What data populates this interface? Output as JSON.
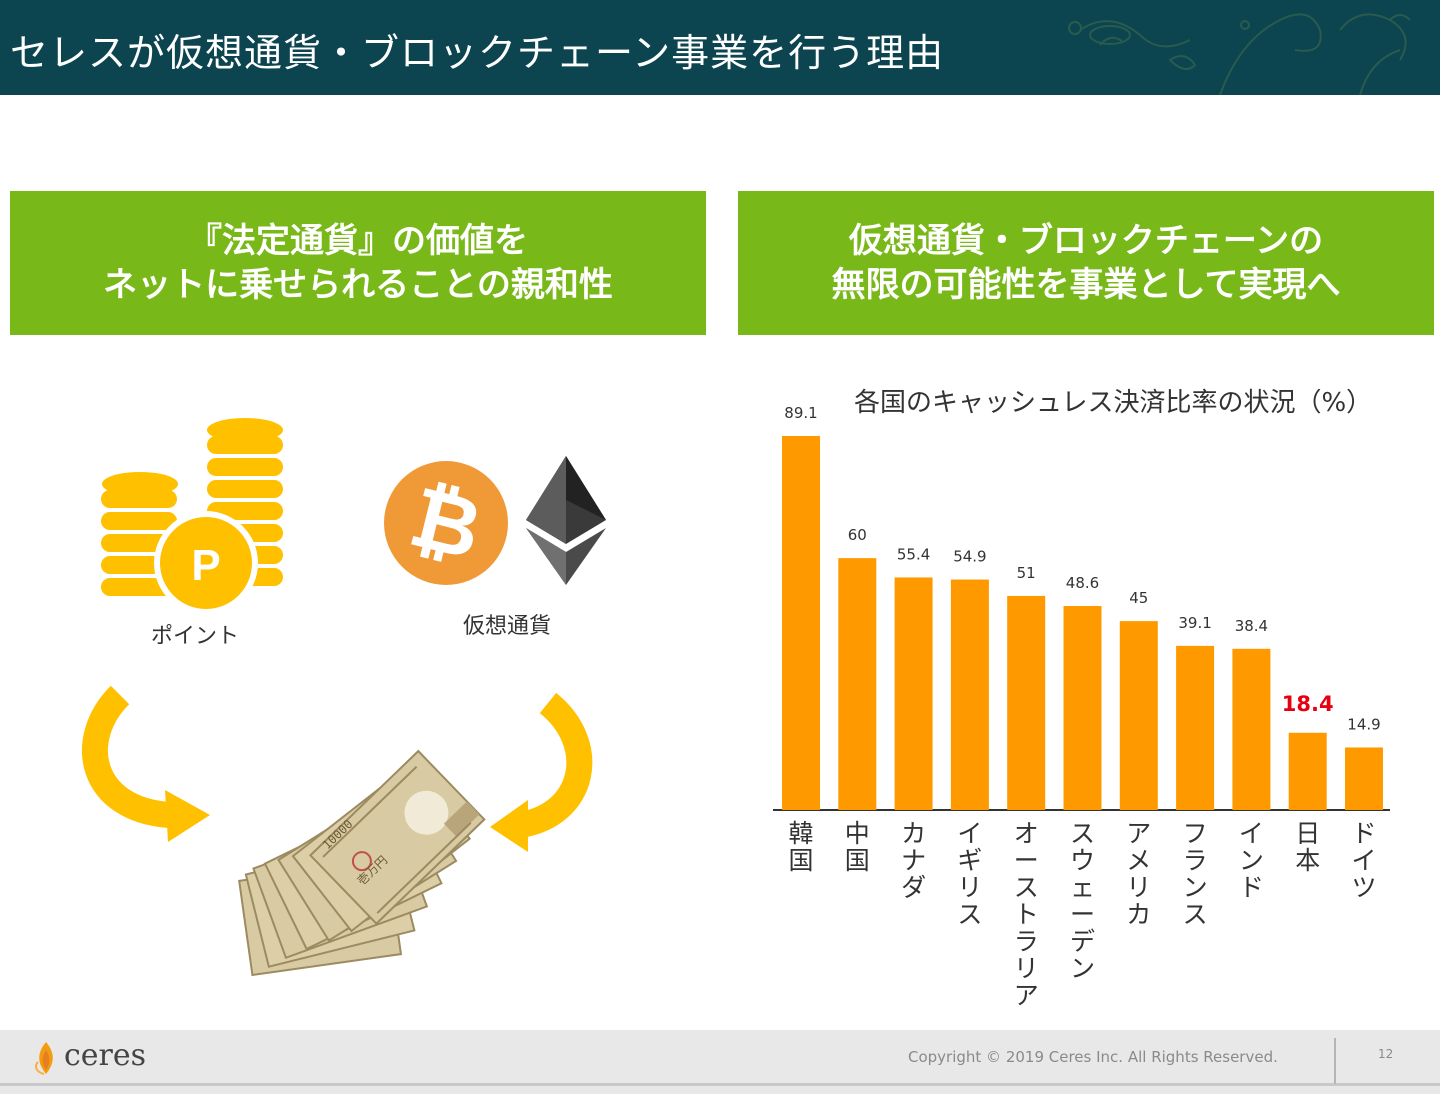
{
  "header": {
    "title": "セレスが仮想通貨・ブロックチェーン事業を行う理由"
  },
  "banners": {
    "left": {
      "line1": "『法定通貨』の価値を",
      "line2": "ネットに乗せられることの親和性"
    },
    "right": {
      "line1": "仮想通貨・ブロックチェーンの",
      "line2": "無限の可能性を事業として実現へ"
    }
  },
  "illustration": {
    "points_label": "ポイント",
    "points_symbol": "P",
    "crypto_label": "仮想通貨",
    "bill_text": "10000",
    "bill_text_2": "壱万円"
  },
  "chart_data": {
    "type": "bar",
    "title": "各国のキャッシュレス決済比率の状況（%）",
    "categories": [
      "韓国",
      "中国",
      "カナダ",
      "イギリス",
      "オーストラリア",
      "スウェーデン",
      "アメリカ",
      "フランス",
      "インド",
      "日本",
      "ドイツ"
    ],
    "values": [
      89.1,
      60,
      55.4,
      54.9,
      51,
      48.6,
      45,
      39.1,
      38.4,
      18.4,
      14.9
    ],
    "value_labels": [
      "89.1",
      "60",
      "55.4",
      "54.9",
      "51",
      "48.6",
      "45",
      "39.1",
      "38.4",
      "18.4",
      "14.9"
    ],
    "highlight_index": 9,
    "bar_color": "#ff9900",
    "highlight_label_color": "#e60012",
    "ylim": [
      0,
      89.1
    ],
    "grid": false
  },
  "footer": {
    "logo": "ceres",
    "copyright": "Copyright © 2019 Ceres Inc. All Rights Reserved.",
    "page": "12"
  },
  "colors": {
    "header_bg": "#0c4450",
    "banner_green": "#78b819",
    "coin_yellow": "#ffc000"
  }
}
